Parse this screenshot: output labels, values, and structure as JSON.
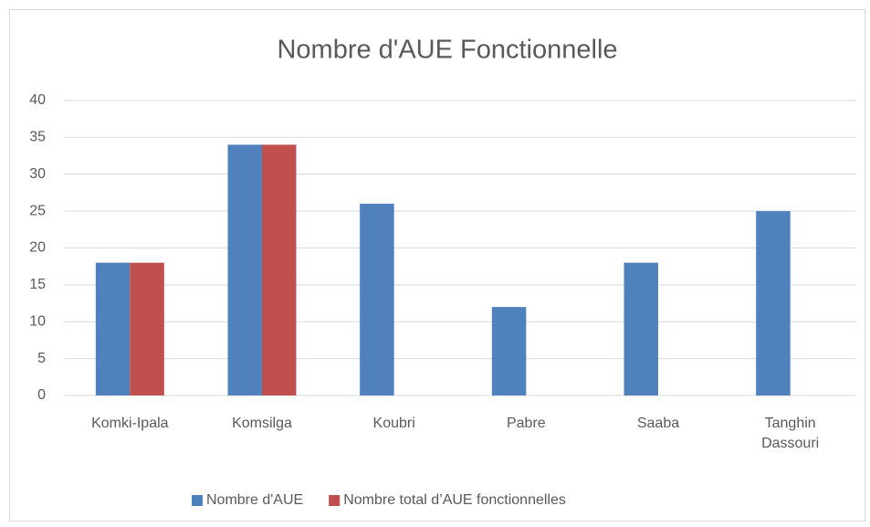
{
  "chart_data": {
    "type": "bar",
    "title": "Nombre d'AUE Fonctionnelle",
    "categories": [
      "Komki-Ipala",
      "Komsilga",
      "Koubri",
      "Pabre",
      "Saaba",
      "Tanghin Dassouri"
    ],
    "series": [
      {
        "name": "Nombre d'AUE",
        "color": "#4f81bd",
        "values": [
          18,
          34,
          26,
          12,
          18,
          25
        ]
      },
      {
        "name": "Nombre total d’AUE fonctionnelles",
        "color": "#c0504d",
        "values": [
          18,
          34,
          null,
          null,
          null,
          null
        ]
      }
    ],
    "ylim": [
      0,
      40
    ],
    "yticks": [
      0,
      5,
      10,
      15,
      20,
      25,
      30,
      35,
      40
    ],
    "grid": true,
    "legend": "bottom"
  }
}
